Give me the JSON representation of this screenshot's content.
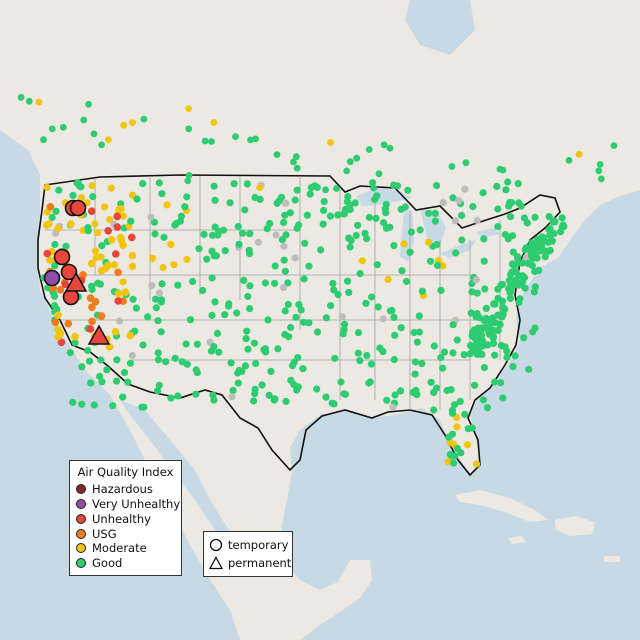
{
  "map": {
    "colors": {
      "ocean": "#c8d9e6",
      "land": "#ece8e2",
      "border": "#111111",
      "state_line": "#9a9a9a",
      "monitor_no_data": "#bdbdbd"
    },
    "aqi_categories": [
      {
        "key": "hazardous",
        "label": "Hazardous",
        "color": "#7e2a2a"
      },
      {
        "key": "very_unhealthy",
        "label": "Very Unhealthy",
        "color": "#8f4fa8"
      },
      {
        "key": "unhealthy",
        "label": "Unhealthy",
        "color": "#e8453c"
      },
      {
        "key": "usg",
        "label": "USG",
        "color": "#ef7d1e"
      },
      {
        "key": "moderate",
        "label": "Moderate",
        "color": "#f1c40f"
      },
      {
        "key": "good",
        "label": "Good",
        "color": "#2ecc71"
      }
    ]
  },
  "legend_aqi": {
    "title": "Air Quality Index",
    "items": [
      "Hazardous",
      "Very Unhealthy",
      "Unhealthy",
      "USG",
      "Moderate",
      "Good"
    ]
  },
  "legend_type": {
    "items": [
      {
        "label": "temporary",
        "icon": "circle-icon"
      },
      {
        "label": "permanent",
        "icon": "triangle-icon"
      }
    ]
  }
}
